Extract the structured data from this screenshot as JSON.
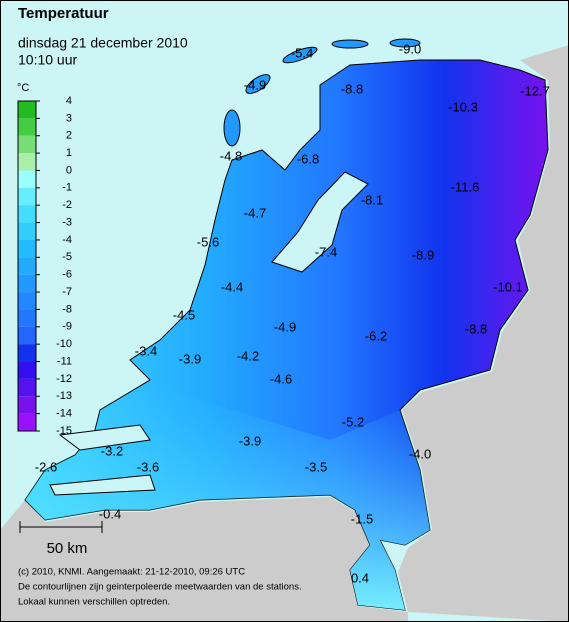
{
  "header": {
    "title": "Temperatuur",
    "date": "dinsdag 21 december 2010",
    "time": "10:10 uur"
  },
  "legend": {
    "unit": "°C",
    "ticks": [
      4,
      3,
      2,
      1,
      0,
      -1,
      -2,
      -3,
      -4,
      -5,
      -6,
      -7,
      -8,
      -9,
      -10,
      -11,
      -12,
      -13,
      -14,
      -15
    ],
    "colors": [
      "#22bb22",
      "#44cc44",
      "#77dd77",
      "#aaeeaa",
      "#99ffff",
      "#66eeff",
      "#44ddff",
      "#33ccff",
      "#22bbff",
      "#22aaff",
      "#2299ff",
      "#2288ff",
      "#2277ff",
      "#2266ff",
      "#1133ee",
      "#3311ee",
      "#5511ee",
      "#7711ee",
      "#9911ff"
    ]
  },
  "stations": [
    "-5.4",
    "-9.0",
    "-4.9",
    "-8.8",
    "-10.3",
    "-12.7",
    "-4.8",
    "-6.8",
    "-8.1",
    "-11.6",
    "-4.7",
    "-5.6",
    "-7.4",
    "-8.9",
    "-10.1",
    "-4.4",
    "-4.5",
    "-4.9",
    "-6.2",
    "-8.8",
    "-3.4",
    "-3.9",
    "-4.2",
    "-4.6",
    "-5.2",
    "-3.9",
    "-4.0",
    "-3.2",
    "-2.6",
    "-3.6",
    "-3.5",
    "-0.4",
    "-1.5",
    "0.4"
  ],
  "scale": "50 km",
  "footer": [
    "(c) 2010, KNMI. Aangemaakt: 21-12-2010, 09:26 UTC",
    "De contourlijnen zijn geinterpoleerde meetwaarden van de stations.",
    "Lokaal kunnen verschillen optreden."
  ]
}
